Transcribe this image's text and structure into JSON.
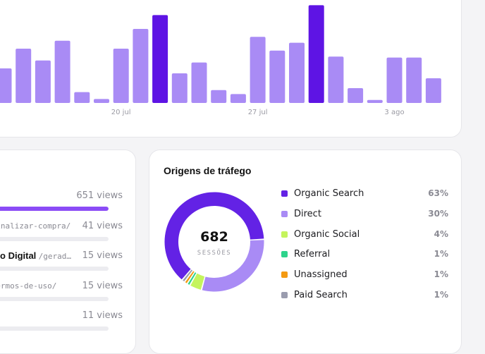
{
  "sessions_chart": {
    "chart_data": {
      "type": "bar",
      "values": [
        35,
        55,
        43,
        63,
        11,
        4,
        55,
        75,
        89,
        30,
        41,
        13,
        9,
        67,
        53,
        61,
        99,
        47,
        15,
        3,
        46,
        46,
        25
      ],
      "highlighted_indices": [
        8,
        16
      ],
      "x_ticks": [
        {
          "index": 6,
          "label": "20 jul"
        },
        {
          "index": 13,
          "label": "27 jul"
        },
        {
          "index": 20,
          "label": "3 ago"
        }
      ],
      "ylim": [
        0,
        100
      ],
      "grid": false
    },
    "colors": {
      "bar": "#a98bf5",
      "highlight": "#5e14e4"
    }
  },
  "top_pages": {
    "rows": [
      {
        "title": "",
        "path": "",
        "views": "651 views",
        "fraction": 1.0
      },
      {
        "title": "",
        "path": "/finalizar-compra/",
        "views": "41 views",
        "fraction": 0.0
      },
      {
        "title": "Catálogo Digital",
        "path": "/gerad…",
        "views": "15 views",
        "fraction": 0.0
      },
      {
        "title": "",
        "path": "/termos-de-uso/",
        "views": "15 views",
        "fraction": 0.0
      },
      {
        "title": "",
        "path": "",
        "views": "11 views",
        "fraction": 0.0
      }
    ],
    "colors": {
      "fill": "#8b4cf6",
      "track": "#ececf0"
    }
  },
  "traffic": {
    "title": "Origens de tráfego",
    "total": "682",
    "total_label": "SESSÕES",
    "chart_data": {
      "type": "pie",
      "labels": [
        "Organic Search",
        "Direct",
        "Organic Social",
        "Referral",
        "Unassigned",
        "Paid Search"
      ],
      "values": [
        63,
        30,
        4,
        1,
        1,
        1
      ]
    },
    "legend": [
      {
        "name": "Organic Search",
        "pct": "63%",
        "color": "#6322e5"
      },
      {
        "name": "Direct",
        "pct": "30%",
        "color": "#a98bf5"
      },
      {
        "name": "Organic Social",
        "pct": "4%",
        "color": "#c5f45d"
      },
      {
        "name": "Referral",
        "pct": "1%",
        "color": "#2dd48c"
      },
      {
        "name": "Unassigned",
        "pct": "1%",
        "color": "#f49a12"
      },
      {
        "name": "Paid Search",
        "pct": "1%",
        "color": "#9a9cae"
      }
    ]
  }
}
